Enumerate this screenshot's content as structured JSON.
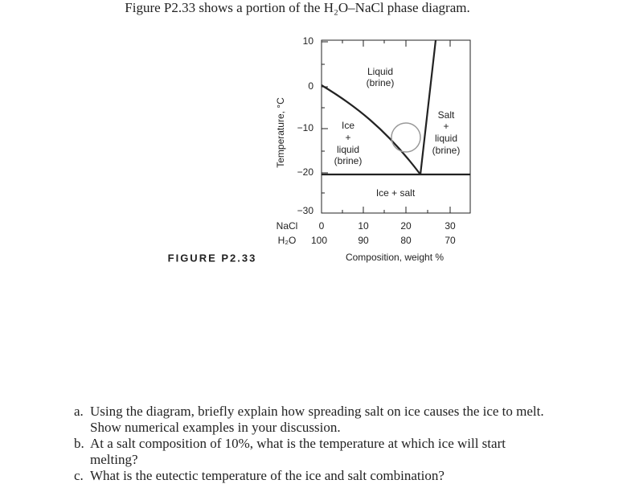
{
  "title": "Figure P2.33 shows a portion of the H₂O–NaCl phase diagram.",
  "figure": {
    "label": "FIGURE P2.33",
    "y_axis_label": "Temperature, °C",
    "y_ticks": [
      "10",
      "0",
      "−10",
      "−20",
      "−30"
    ],
    "x_axis_label": "Composition, weight %",
    "nacl_label": "NaCl",
    "nacl_ticks": [
      "0",
      "10",
      "20",
      "30"
    ],
    "h2o_label": "H₂O",
    "h2o_ticks": [
      "100",
      "90",
      "80",
      "70"
    ],
    "regions": {
      "liquid": [
        "Liquid",
        "(brine)"
      ],
      "ice_liquid": [
        "Ice",
        "+",
        "liquid",
        "(brine)"
      ],
      "salt_liquid": [
        "Salt",
        "+",
        "liquid",
        "(brine)"
      ],
      "ice_salt": "Ice + salt"
    }
  },
  "questions": [
    {
      "label": "a.",
      "text": "Using the diagram, briefly explain how spreading salt on ice causes the ice to melt. Show numerical examples in your discussion."
    },
    {
      "label": "b.",
      "text": "At a salt composition of 10%, what is the temperature at which ice will start melting?"
    },
    {
      "label": "c.",
      "text": "What is the eutectic temperature of the ice and salt combination?"
    }
  ]
}
